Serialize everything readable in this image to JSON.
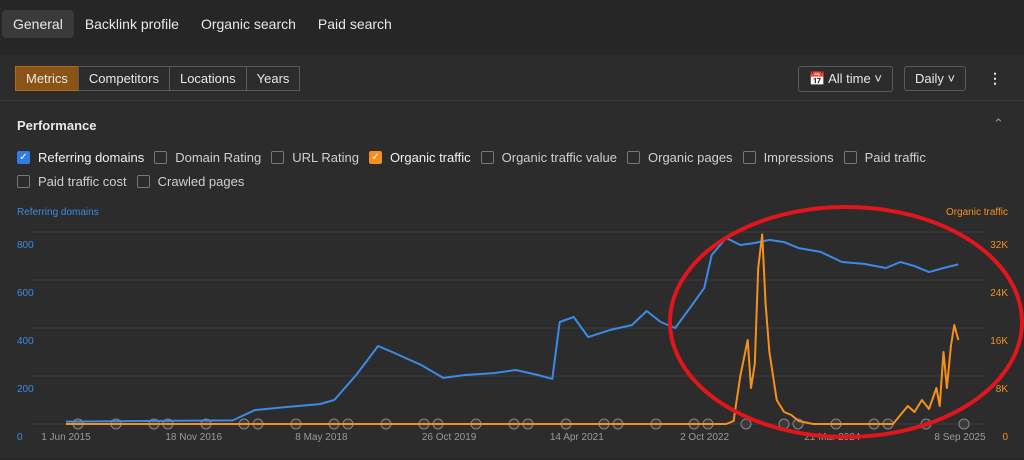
{
  "tabs": [
    "General",
    "Backlink profile",
    "Organic search",
    "Paid search"
  ],
  "toolbar": {
    "segments": [
      "Metrics",
      "Competitors",
      "Locations",
      "Years"
    ],
    "range": "All time",
    "interval": "Daily"
  },
  "panel": {
    "title": "Performance",
    "checkboxes": [
      {
        "label": "Referring domains",
        "checked": true,
        "color": "#2f7de1"
      },
      {
        "label": "Domain Rating",
        "checked": false
      },
      {
        "label": "URL Rating",
        "checked": false
      },
      {
        "label": "Organic traffic",
        "checked": true,
        "color": "#f5901e"
      },
      {
        "label": "Organic traffic value",
        "checked": false
      },
      {
        "label": "Organic pages",
        "checked": false
      },
      {
        "label": "Impressions",
        "checked": false
      },
      {
        "label": "Paid traffic",
        "checked": false
      },
      {
        "label": "Paid traffic cost",
        "checked": false
      },
      {
        "label": "Crawled pages",
        "checked": false
      }
    ]
  },
  "chart_data": {
    "type": "line",
    "y_label": "Referring domains",
    "y2_label": "Organic traffic",
    "xlim": [
      "1 Jan 2015",
      "22 Dec 2025"
    ],
    "xticks": [
      "1 Jun 2015",
      "18 Nov 2016",
      "8 May 2018",
      "26 Oct 2019",
      "14 Apr 2021",
      "2 Oct 2022",
      "21 Mar 2024",
      "8 Sep 2025"
    ],
    "ylim": [
      0,
      800
    ],
    "yticks": [
      0,
      200,
      400,
      600,
      800
    ],
    "y2lim": [
      0,
      32000
    ],
    "y2ticks": [
      0,
      {
        "value": 8000,
        "label": "8K"
      },
      {
        "value": 16000,
        "label": "16K"
      },
      {
        "value": 24000,
        "label": "24K"
      },
      {
        "value": 32000,
        "label": "32K"
      }
    ],
    "grid": true,
    "series": [
      {
        "name": "Referring domains",
        "color": "#3b8be6",
        "x": [
          "1 Jun 2015",
          "1 May 2017",
          "1 Aug 2017",
          "1 Dec 2017",
          "1 May 2018",
          "1 Jul 2018",
          "1 Oct 2018",
          "1 Jan 2019",
          "1 Mar 2019",
          "1 Jul 2019",
          "1 Oct 2019",
          "1 Jan 2020",
          "1 May 2020",
          "1 Aug 2020",
          "1 Nov 2020",
          "1 Jan 2021",
          "1 Feb 2021",
          "1 Apr 2021",
          "1 Jun 2021",
          "1 Sep 2021",
          "1 Dec 2021",
          "1 Feb 2022",
          "1 Apr 2022",
          "1 Jun 2022",
          "1 Aug 2022",
          "1 Oct 2022",
          "1 Nov 2022",
          "1 Jan 2023",
          "1 Mar 2023",
          "1 May 2023",
          "1 Jul 2023",
          "1 Sep 2023",
          "1 Nov 2023",
          "1 Feb 2024",
          "1 May 2024",
          "1 Aug 2024",
          "1 Nov 2024",
          "1 Jan 2025",
          "1 Mar 2025",
          "1 May 2025",
          "1 Jul 2025",
          "1 Sep 2025"
        ],
        "values": [
          10,
          15,
          58,
          70,
          83,
          100,
          204,
          325,
          300,
          246,
          192,
          204,
          212,
          225,
          204,
          188,
          425,
          446,
          362,
          392,
          412,
          471,
          425,
          400,
          483,
          567,
          704,
          775,
          746,
          754,
          767,
          758,
          733,
          717,
          675,
          667,
          650,
          675,
          658,
          633,
          650,
          665
        ]
      },
      {
        "name": "Organic traffic",
        "color": "#f5901e",
        "axis": "y2",
        "x": [
          "1 Jun 2015",
          "1 Oct 2022",
          "1 Jan 2023",
          "1 Feb 2023",
          "1 Mar 2023",
          "1 Apr 2023",
          "15 Apr 2023",
          "1 May 2023",
          "15 May 2023",
          "1 Jun 2023",
          "15 Jun 2023",
          "1 Jul 2023",
          "1 Aug 2023",
          "1 Sep 2023",
          "1 Oct 2023",
          "1 Nov 2023",
          "1 Jan 2024",
          "1 Oct 2024",
          "1 Dec 2024",
          "1 Jan 2025",
          "1 Feb 2025",
          "1 Mar 2025",
          "1 Apr 2025",
          "1 May 2025",
          "1 Jun 2025",
          "15 Jun 2025",
          "1 Jul 2025",
          "15 Jul 2025",
          "1 Aug 2025",
          "15 Aug 2025",
          "1 Sep 2025"
        ],
        "values": [
          0,
          0,
          0,
          500,
          8000,
          14000,
          6000,
          10000,
          26000,
          31600,
          20000,
          12000,
          4000,
          2000,
          1500,
          500,
          0,
          0,
          0,
          1500,
          3000,
          2000,
          4000,
          2500,
          6000,
          3000,
          12000,
          6000,
          13000,
          16500,
          14000
        ]
      }
    ]
  }
}
